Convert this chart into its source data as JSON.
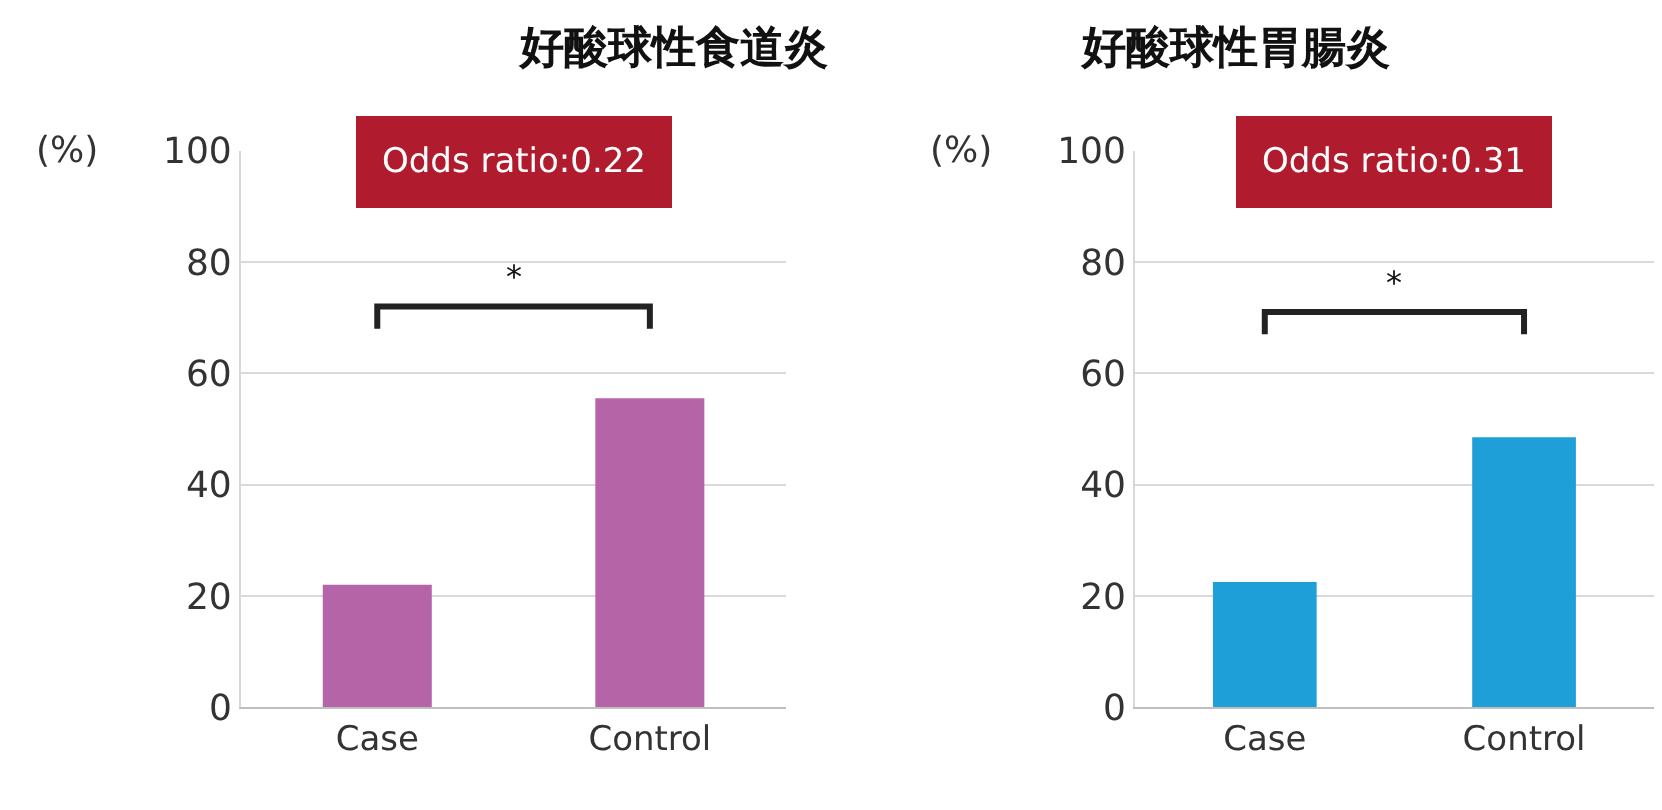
{
  "chart_data": [
    {
      "type": "bar",
      "title": "好酸球性食道炎",
      "ylabel": "(%)",
      "categories": [
        "Case",
        "Control"
      ],
      "values": [
        22,
        55.5
      ],
      "color": "#b565a7",
      "ylim": [
        0,
        100
      ],
      "yticks": [
        0,
        20,
        40,
        60,
        80,
        100
      ],
      "grid": "y",
      "annotations": [
        "Odds ratio:0.22",
        "*"
      ]
    },
    {
      "type": "bar",
      "title": "好酸球性胃腸炎",
      "ylabel": "(%)",
      "categories": [
        "Case",
        "Control"
      ],
      "values": [
        22.5,
        48.5
      ],
      "color": "#1e9fd8",
      "ylim": [
        0,
        100
      ],
      "yticks": [
        0,
        20,
        40,
        60,
        80,
        100
      ],
      "grid": "y",
      "annotations": [
        "Odds ratio:0.31",
        "*"
      ]
    }
  ]
}
